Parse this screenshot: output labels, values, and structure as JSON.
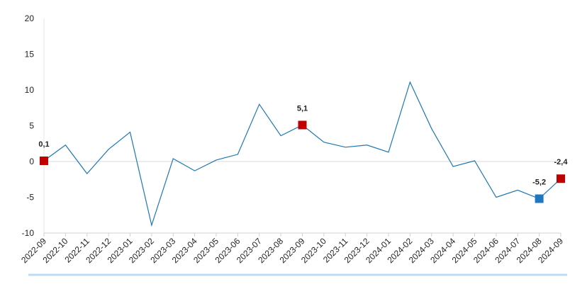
{
  "chart_data": {
    "type": "line",
    "x": [
      "2022-09",
      "2022-10",
      "2022-11",
      "2022-12",
      "2023-01",
      "2023-02",
      "2023-03",
      "2023-04",
      "2023-05",
      "2023-06",
      "2023-07",
      "2023-08",
      "2023-09",
      "2023-10",
      "2023-11",
      "2023-12",
      "2024-01",
      "2024-02",
      "2024-03",
      "2024-04",
      "2024-05",
      "2024-06",
      "2024-07",
      "2024-08",
      "2024-09"
    ],
    "series": [
      {
        "color": "#1f77b4",
        "values": [
          0.1,
          2.3,
          -1.7,
          1.7,
          4.1,
          -8.9,
          0.4,
          -1.3,
          0.2,
          1.0,
          8.0,
          3.6,
          5.1,
          2.7,
          2.0,
          2.3,
          1.3,
          11.1,
          4.6,
          -0.7,
          0.1,
          -5.0,
          -4.0,
          -5.2,
          -2.4
        ],
        "value_labels": [
          "0,1",
          null,
          null,
          null,
          null,
          null,
          null,
          null,
          null,
          null,
          null,
          null,
          "5,1",
          null,
          null,
          null,
          null,
          null,
          null,
          null,
          null,
          null,
          null,
          "-5,2",
          "-2,4"
        ],
        "marker_colors": [
          "#c00000",
          null,
          null,
          null,
          null,
          null,
          null,
          null,
          null,
          null,
          null,
          null,
          "#c00000",
          null,
          null,
          null,
          null,
          null,
          null,
          null,
          null,
          null,
          null,
          "#1f77c4",
          "#c00000"
        ]
      }
    ],
    "ylim": [
      -10,
      20
    ],
    "yticks": [
      -10,
      -5,
      0,
      5,
      10,
      15,
      20
    ]
  }
}
